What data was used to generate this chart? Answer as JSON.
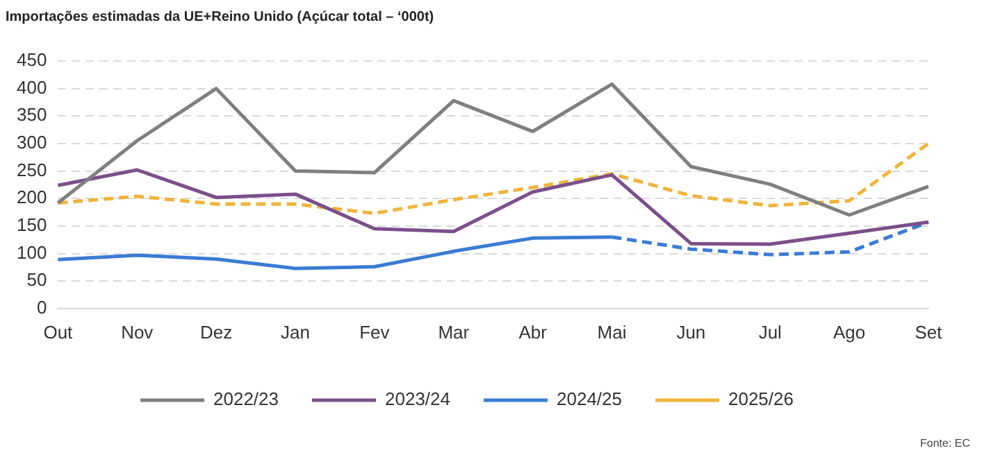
{
  "chart_data": {
    "type": "line",
    "title": "Importações estimadas da UE+Reino Unido (Açúcar total – ‘000t)",
    "categories": [
      "Out",
      "Nov",
      "Dez",
      "Jan",
      "Fev",
      "Mar",
      "Abr",
      "Mai",
      "Jun",
      "Jul",
      "Ago",
      "Set"
    ],
    "series": [
      {
        "name": "2022/23",
        "color": "#7f7f7f",
        "values": [
          192,
          305,
          400,
          250,
          247,
          378,
          322,
          408,
          258,
          226,
          170,
          222
        ]
      },
      {
        "name": "2023/24",
        "color": "#7b4f8a",
        "values": [
          224,
          252,
          202,
          208,
          145,
          140,
          212,
          243,
          118,
          117,
          137,
          157
        ]
      },
      {
        "name": "2024/25",
        "color": "#3a7bd5",
        "values": [
          89,
          97,
          90,
          73,
          76,
          104,
          128,
          130,
          null,
          null,
          null,
          null
        ]
      },
      {
        "color": "#3a7bd5",
        "line_style": "dashed",
        "values": [
          null,
          null,
          null,
          null,
          null,
          null,
          null,
          130,
          108,
          98,
          103,
          157
        ]
      },
      {
        "name": "2025/26",
        "color": "#f0b43c",
        "line_style": "dashed",
        "values": [
          192,
          204,
          190,
          190,
          173,
          198,
          220,
          245,
          205,
          187,
          196,
          300
        ]
      }
    ],
    "ylim": [
      0,
      450
    ],
    "yticks": [
      0,
      50,
      100,
      150,
      200,
      250,
      300,
      350,
      400,
      450
    ],
    "grid": "y",
    "legend": "bottom",
    "marker": "none",
    "annotations": [
      "Fonte: EC"
    ]
  }
}
